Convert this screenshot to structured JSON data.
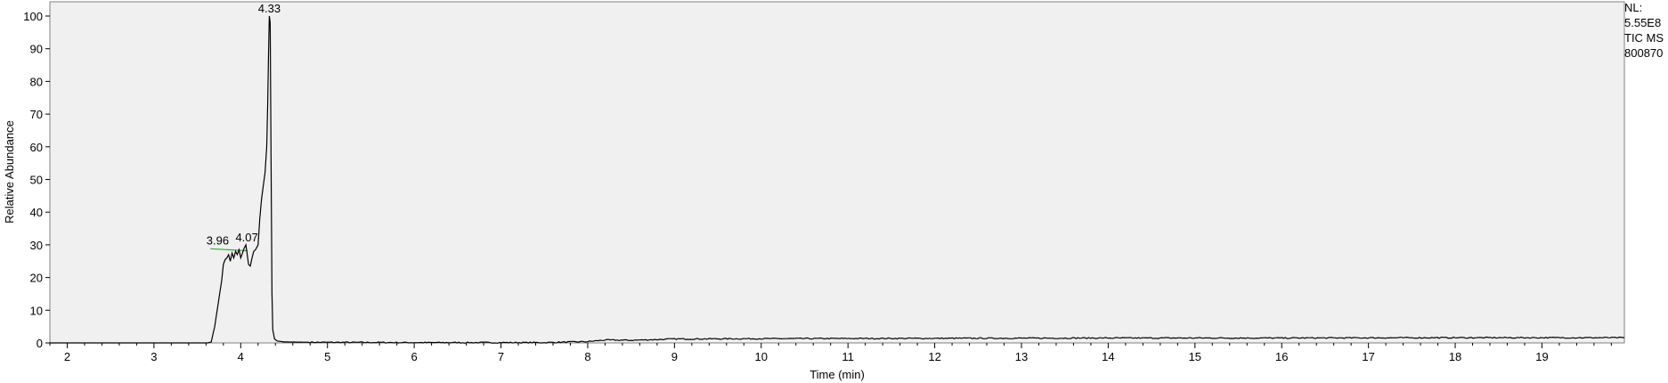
{
  "chart_data": {
    "type": "line",
    "xlabel": "Time (min)",
    "ylabel": "Relative Abundance",
    "xlim": [
      1.8,
      19.95
    ],
    "ylim": [
      0,
      100
    ],
    "x_ticks": [
      2,
      3,
      4,
      5,
      6,
      7,
      8,
      9,
      10,
      11,
      12,
      13,
      14,
      15,
      16,
      17,
      18,
      19
    ],
    "y_ticks": [
      0,
      10,
      20,
      30,
      40,
      50,
      60,
      70,
      80,
      90,
      100
    ],
    "grid": false,
    "series": [
      {
        "color": "#000000",
        "x": [
          1.8,
          3.5,
          3.62,
          3.66,
          3.7,
          3.74,
          3.78,
          3.8,
          3.82,
          3.84,
          3.86,
          3.88,
          3.9,
          3.92,
          3.94,
          3.96,
          3.98,
          4.0,
          4.02,
          4.04,
          4.06,
          4.07,
          4.09,
          4.11,
          4.13,
          4.15,
          4.17,
          4.2,
          4.22,
          4.24,
          4.26,
          4.28,
          4.3,
          4.31,
          4.32,
          4.33,
          4.34,
          4.35,
          4.36,
          4.37,
          4.39,
          4.42,
          4.5,
          4.8,
          6.0,
          7.5,
          8.0,
          8.2,
          8.5,
          9.0,
          10.0,
          12.0,
          14.0,
          16.0,
          18.0,
          19.95
        ],
        "y": [
          0,
          0,
          0,
          0.3,
          5,
          12,
          19,
          24,
          25.5,
          26,
          27,
          25,
          27.5,
          26,
          28,
          27,
          28.5,
          26,
          27.5,
          29,
          30,
          28,
          24,
          23.5,
          26,
          28,
          28.5,
          30,
          38,
          44,
          48,
          52,
          60,
          72,
          88,
          100,
          98,
          55,
          15,
          4,
          1.2,
          0.6,
          0.3,
          0.2,
          0.1,
          0.1,
          0.4,
          0.9,
          0.8,
          1.2,
          1.3,
          1.4,
          1.5,
          1.5,
          1.6,
          1.6
        ]
      }
    ],
    "peak_labels": [
      {
        "x": 3.96,
        "y": 29,
        "label": "3.96"
      },
      {
        "x": 4.07,
        "y": 30,
        "label": "4.07"
      },
      {
        "x": 4.33,
        "y": 100,
        "label": "4.33"
      }
    ],
    "baseline_segments": [
      {
        "x1": 3.65,
        "y1": 28.8,
        "x2": 4.08,
        "y2": 28.2,
        "color": "#3aa83a"
      }
    ]
  },
  "sidebox": {
    "nl_label": "NL:",
    "nl_value": "5.55E8",
    "tic_label": "TIC  MS",
    "sample_id": "800870"
  }
}
